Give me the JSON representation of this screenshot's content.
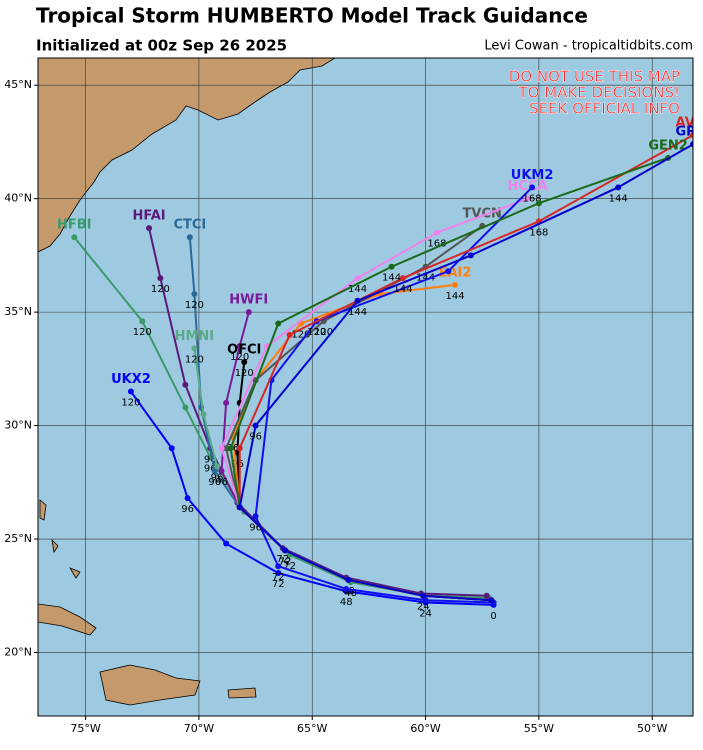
{
  "chart_data": {
    "type": "track",
    "title": "Tropical Storm HUMBERTO Model Track Guidance",
    "subtitle": "Initialized at 00z Sep 26 2025",
    "credit": "Levi Cowan - tropicaltidbits.com",
    "warning": [
      "DO NOT USE THIS MAP",
      "TO MAKE DECISIONS!",
      "SEEK OFFICIAL INFO"
    ],
    "xlim": [
      -77.1,
      -48.2
    ],
    "ylim": [
      17.2,
      46.2
    ],
    "xticks": [
      {
        "value": -75,
        "label": "75°W"
      },
      {
        "value": -70,
        "label": "70°W"
      },
      {
        "value": -65,
        "label": "65°W"
      },
      {
        "value": -60,
        "label": "60°W"
      },
      {
        "value": -55,
        "label": "55°W"
      },
      {
        "value": -50,
        "label": "50°W"
      }
    ],
    "yticks": [
      {
        "value": 20,
        "label": "20°N"
      },
      {
        "value": 25,
        "label": "25°N"
      },
      {
        "value": 30,
        "label": "30°N"
      },
      {
        "value": 35,
        "label": "35°N"
      },
      {
        "value": 40,
        "label": "40°N"
      },
      {
        "value": 45,
        "label": "45°N"
      }
    ],
    "grid": true,
    "series": [
      {
        "name": "UKX2",
        "color": "#0000ff",
        "x": [
          -57,
          -60,
          -63.5,
          -66.5,
          -68.8,
          -70.5,
          -71.2,
          -73
        ],
        "values": [
          22.1,
          22.2,
          22.7,
          23.5,
          24.8,
          26.8,
          29,
          31.5
        ],
        "hours": [
          0,
          24,
          48,
          72,
          null,
          96,
          null,
          120
        ]
      },
      {
        "name": "HFBI",
        "color": "#3a9a6a",
        "x": [
          -57.2,
          -60,
          -63.3,
          -66,
          -68,
          -69.5,
          -70.6,
          -72.5,
          -75.5
        ],
        "values": [
          22.4,
          22.5,
          23.1,
          24.3,
          26.2,
          28.6,
          30.8,
          34.6,
          38.3
        ],
        "hours": [
          null,
          null,
          48,
          72,
          null,
          96,
          null,
          120,
          null
        ]
      },
      {
        "name": "HFAI",
        "color": "#5b1a7a",
        "x": [
          -57.3,
          -60.2,
          -63.5,
          -66.3,
          -68.3,
          -69.5,
          -70.6,
          -71.7,
          -72.2
        ],
        "values": [
          22.5,
          22.6,
          23.3,
          24.6,
          26.6,
          29,
          31.8,
          36.5,
          38.7
        ],
        "hours": [
          null,
          null,
          null,
          72,
          null,
          96,
          null,
          120,
          null
        ]
      },
      {
        "name": "CTCI",
        "color": "#2a6a9a",
        "x": [
          -57.1,
          -60.1,
          -63.4,
          -66.2,
          -68.2,
          -69.3,
          -69.9,
          -70.2,
          -70.4
        ],
        "values": [
          22.3,
          22.5,
          23.2,
          24.5,
          26.4,
          28,
          30.8,
          35.8,
          38.3
        ],
        "hours": [
          null,
          null,
          null,
          72,
          null,
          96,
          null,
          120,
          null
        ]
      },
      {
        "name": "HMNI",
        "color": "#5aaa8a",
        "x": [
          -57.1,
          -60.1,
          -63.4,
          -66.2,
          -68.2,
          -69.2,
          -69.8,
          -70.2
        ],
        "values": [
          22.3,
          22.5,
          23.2,
          24.5,
          26.4,
          28.2,
          30.5,
          33.4
        ],
        "hours": [
          null,
          null,
          null,
          null,
          null,
          96,
          null,
          120
        ]
      },
      {
        "name": "HWFI",
        "color": "#7a1a9a",
        "x": [
          -57.1,
          -60.1,
          -63.4,
          -66.2,
          -68.2,
          -69,
          -68.8,
          -68.2,
          -67.8
        ],
        "values": [
          22.3,
          22.5,
          23.2,
          24.5,
          26.4,
          28,
          31,
          33.5,
          35
        ],
        "hours": [
          null,
          null,
          null,
          null,
          null,
          96,
          null,
          120,
          null
        ]
      },
      {
        "name": "OFCI",
        "color": "#000000",
        "x": [
          -57.1,
          -60.1,
          -63.4,
          -66.2,
          -68.2,
          -68.3,
          -68.2,
          -68
        ],
        "values": [
          22.3,
          22.5,
          23.2,
          24.5,
          26.4,
          28.8,
          31,
          32.8
        ],
        "hours": [
          null,
          24,
          48,
          72,
          null,
          96,
          null,
          120
        ]
      },
      {
        "name": "EAI2",
        "color": "#ff7f0e",
        "x": [
          -57.1,
          -60.1,
          -63.4,
          -66.2,
          -68.2,
          -68.5,
          -67.5,
          -65.5,
          -62,
          -58.7
        ],
        "values": [
          22.3,
          22.5,
          23.2,
          24.5,
          26.4,
          29.5,
          32,
          34.5,
          35.8,
          36.2
        ],
        "hours": [
          null,
          null,
          null,
          null,
          null,
          96,
          null,
          120,
          null,
          144
        ]
      },
      {
        "name": "TVCN",
        "color": "#555555",
        "x": [
          -57.1,
          -60.1,
          -63.4,
          -66.2,
          -68.2,
          -68.8,
          -67.5,
          -64.5,
          -60,
          -57.5
        ],
        "values": [
          22.3,
          22.5,
          23.2,
          24.5,
          26.4,
          29,
          32,
          34.6,
          37,
          38.8
        ],
        "hours": [
          null,
          null,
          null,
          null,
          null,
          null,
          null,
          120,
          144,
          null
        ]
      },
      {
        "name": "HCCA",
        "color": "#ee82ee",
        "x": [
          -57.1,
          -60.1,
          -63.4,
          -66.2,
          -68.2,
          -69,
          -67,
          -63,
          -59.5,
          -55.5
        ],
        "values": [
          22.3,
          22.5,
          23.2,
          24.5,
          26.4,
          29,
          33.5,
          36.5,
          38.5,
          40
        ],
        "hours": [
          null,
          null,
          null,
          null,
          null,
          null,
          null,
          144,
          168,
          null
        ]
      },
      {
        "name": "UKM2",
        "color": "#1010ee",
        "x": [
          -57,
          -60,
          -63.5,
          -66.5,
          -67.5,
          -66.8,
          -64.8,
          -59,
          -55.3
        ],
        "values": [
          22.2,
          22.3,
          22.8,
          23.8,
          26,
          32,
          34.6,
          36.8,
          40.5
        ],
        "hours": [
          null,
          null,
          null,
          72,
          96,
          null,
          120,
          null,
          168
        ]
      },
      {
        "name": "AVNI",
        "color": "#d62728",
        "x": [
          -57.1,
          -60.1,
          -63.4,
          -66.2,
          -68.2,
          -68.2,
          -66,
          -61,
          -55,
          -48.2
        ],
        "values": [
          22.3,
          22.5,
          23.2,
          24.5,
          26.4,
          29,
          34,
          36.5,
          39,
          42.8
        ],
        "hours": [
          null,
          null,
          null,
          null,
          null,
          null,
          null,
          144,
          168,
          null
        ]
      },
      {
        "name": "GEN2",
        "color": "#1a6a1a",
        "x": [
          -57.1,
          -60.1,
          -63.4,
          -66.2,
          -68.2,
          -68.6,
          -66.5,
          -61.5,
          -55,
          -49.3
        ],
        "values": [
          22.3,
          22.5,
          23.2,
          24.5,
          26.4,
          29,
          34.5,
          37,
          39.8,
          41.8
        ],
        "hours": [
          null,
          null,
          null,
          null,
          null,
          null,
          null,
          144,
          null,
          null
        ]
      },
      {
        "name": "GRPI",
        "color": "#0000cc",
        "x": [
          -57.1,
          -60.1,
          -63.4,
          -66.2,
          -68.2,
          -67.5,
          -63,
          -58,
          -51.5,
          -48.2
        ],
        "values": [
          22.3,
          22.5,
          23.2,
          24.5,
          26.4,
          30,
          35.5,
          37.5,
          40.5,
          42.4
        ],
        "hours": [
          null,
          null,
          null,
          null,
          null,
          96,
          144,
          null,
          144,
          null
        ]
      }
    ]
  }
}
